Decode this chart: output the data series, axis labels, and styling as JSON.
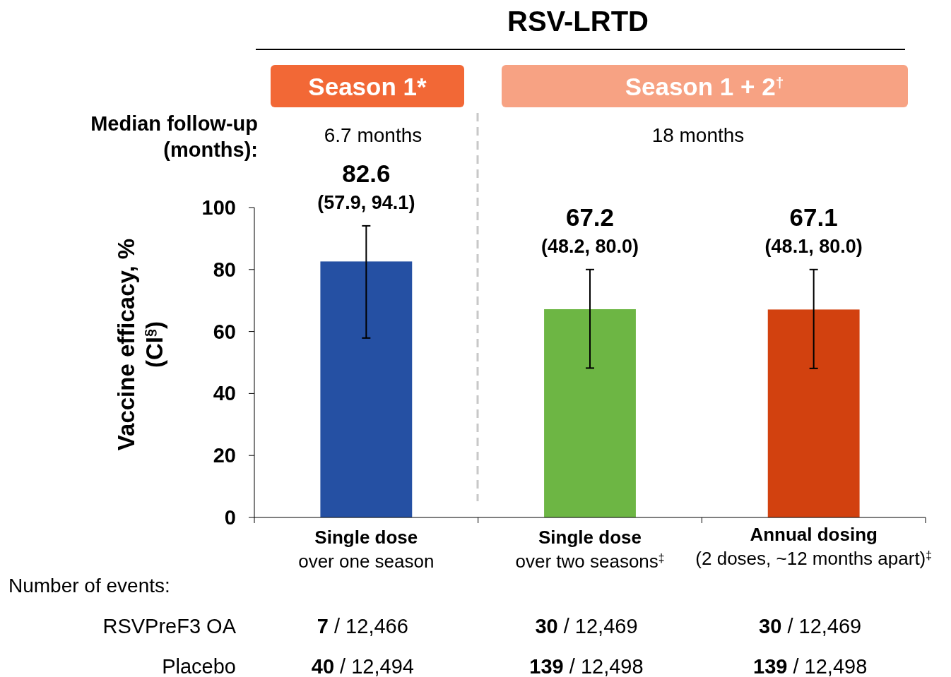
{
  "chart_data": {
    "type": "bar",
    "title": "RSV-LRTD",
    "ylabel": "Vaccine efficacy, %\n(CI$^{§}$)",
    "categories": [
      "Single dose\nover one season",
      "Single dose\nover two seasons$^{‡}$",
      "Annual dosing\n(2 doses, ~12 months apart)$^{‡}$"
    ],
    "values": [
      82.6,
      67.2,
      67.1
    ],
    "colors": [
      "#2550a3",
      "#6db644",
      "#d2410f"
    ],
    "errors": [
      [
        57.9,
        94.1
      ],
      [
        48.2,
        80.0
      ],
      [
        48.1,
        80.0
      ]
    ],
    "data_labels": true,
    "ylim": [
      0,
      100
    ],
    "yticks": [
      0,
      20,
      40,
      60,
      80,
      100
    ],
    "annotations": [
      "Season 1*",
      "Season 1 + 2$^{†}$",
      "Median follow-up\n(months):",
      "6.7 months",
      "18 months",
      "Number of events:",
      "RSVPreF3 OA",
      "7 / 12,466",
      "30 / 12,469",
      "30 / 12,469",
      "Placebo",
      "40 / 12,494",
      "139 / 12,498",
      "139 / 12,498",
      {
        "text": "(57.9, 94.1)",
        "x": "Single dose\nover one season",
        "y": 94.1
      },
      {
        "text": "(48.2, 80.0)",
        "x": "Single dose\nover two seasons$^{‡}$",
        "y": 80.0
      },
      {
        "text": "(48.1, 80.0)",
        "x": "Annual dosing\n(2 doses, ~12 months apart)$^{‡}$",
        "y": 80.0
      }
    ]
  }
}
